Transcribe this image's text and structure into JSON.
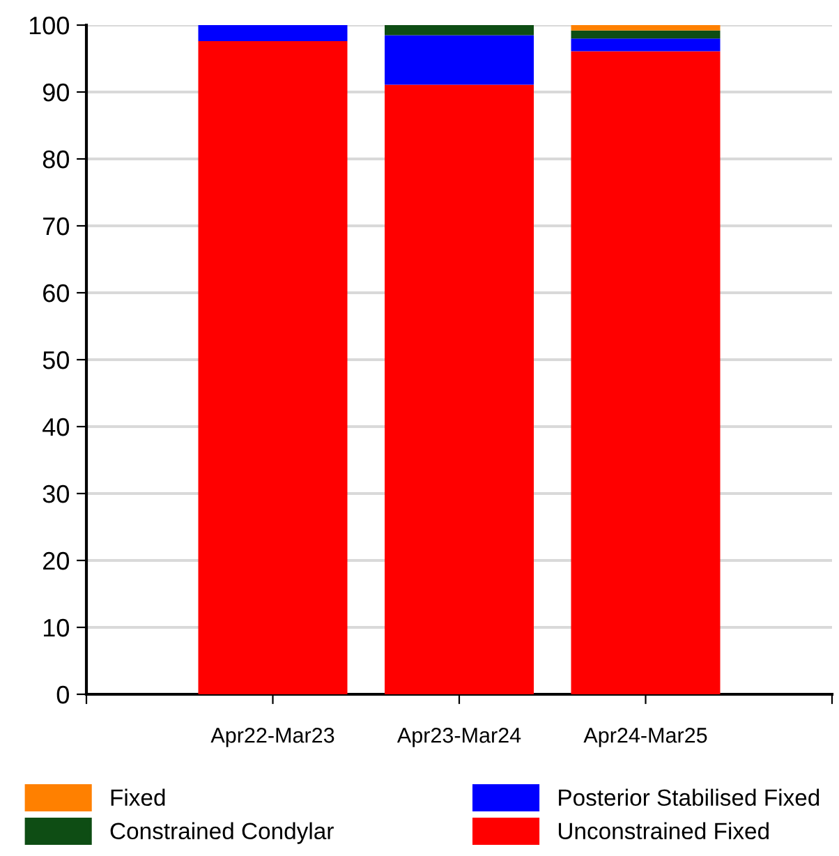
{
  "chart_data": {
    "type": "bar",
    "stacked": true,
    "categories": [
      "Apr22-Mar23",
      "Apr23-Mar24",
      "Apr24-Mar25"
    ],
    "series": [
      {
        "name": "Unconstrained Fixed",
        "color": "#ff0000",
        "values": [
          97.6,
          91.1,
          96.1
        ]
      },
      {
        "name": "Posterior Stabilised Fixed",
        "color": "#0000ff",
        "values": [
          2.4,
          7.4,
          1.9
        ]
      },
      {
        "name": "Constrained Condylar",
        "color": "#0e4d14",
        "values": [
          null,
          1.5,
          1.2
        ]
      },
      {
        "name": "Fixed",
        "color": "#ff8000",
        "values": [
          null,
          null,
          0.8
        ]
      }
    ],
    "ylim": [
      0,
      100
    ],
    "yticks": [
      0,
      10,
      20,
      30,
      40,
      50,
      60,
      70,
      80,
      90,
      100
    ],
    "grid": "y",
    "legend": "bottom"
  }
}
